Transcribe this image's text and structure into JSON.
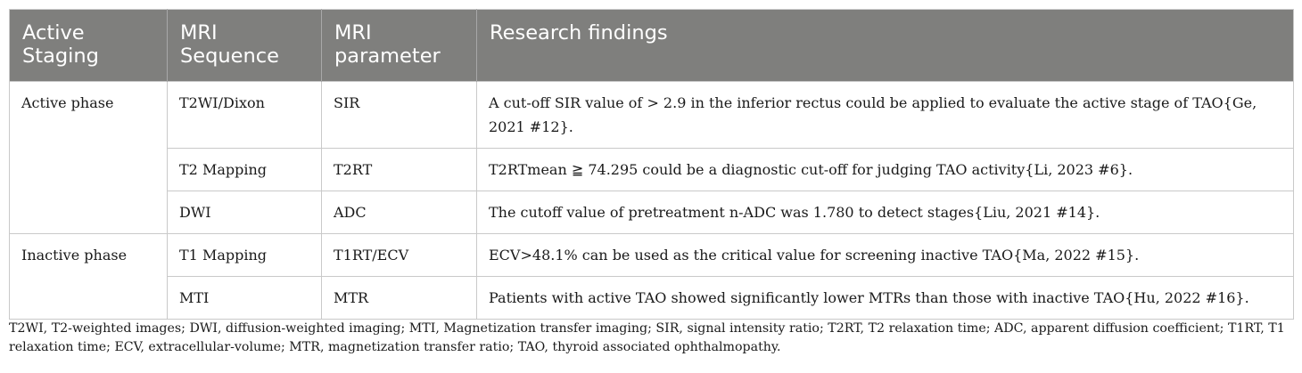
{
  "table": {
    "headers": [
      "Active\nStaging",
      "MRI\nSequence",
      "MRI\nparameter",
      "Research findings"
    ],
    "header_lines": [
      [
        "Active",
        "Staging"
      ],
      [
        "MRI",
        "Sequence"
      ],
      [
        "MRI",
        "parameter"
      ],
      [
        "Research findings"
      ]
    ],
    "groups": [
      {
        "stage": "Active phase",
        "rows": [
          {
            "sequence": "T2WI/Dixon",
            "parameter": "SIR",
            "finding": "A cut-off SIR value of > 2.9 in the inferior rectus could be applied to evaluate the active stage of TAO{Ge, 2021 #12}."
          },
          {
            "sequence": "T2 Mapping",
            "parameter": "T2RT",
            "finding": "T2RTmean ≧ 74.295 could be a diagnostic cut-off for judging TAO activity{Li, 2023 #6}."
          },
          {
            "sequence": "DWI",
            "parameter": "ADC",
            "finding": "The cutoff value of pretreatment n-ADC was 1.780 to detect stages{Liu, 2021 #14}."
          }
        ]
      },
      {
        "stage": "Inactive phase",
        "rows": [
          {
            "sequence": "T1 Mapping",
            "parameter": "T1RT/ECV",
            "finding": "ECV>48.1% can be used as the critical value for screening inactive TAO{Ma, 2022 #15}."
          },
          {
            "sequence": "MTI",
            "parameter": "MTR",
            "finding": "Patients with active TAO showed significantly lower MTRs than those with inactive TAO{Hu, 2022 #16}."
          }
        ]
      }
    ]
  },
  "footnote": "T2WI, T2-weighted images; DWI, diffusion-weighted imaging; MTI, Magnetization transfer imaging; SIR, signal intensity ratio; T2RT, T2 relaxation time; ADC, apparent diffusion coefficient; T1RT, T1 relaxation time; ECV, extracellular-volume; MTR, magnetization transfer ratio; TAO, thyroid associated ophthalmopathy."
}
